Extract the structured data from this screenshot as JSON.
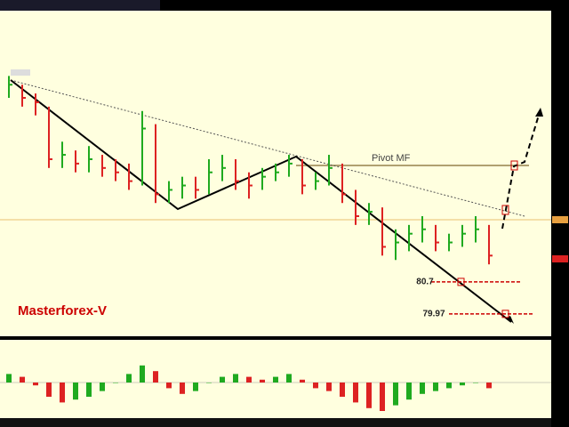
{
  "chart_data": {
    "type": "hlc",
    "title": "Masterforex-V",
    "pivot_label": "Pivot MF",
    "levels": [
      80.7,
      79.97
    ],
    "level_color": "#cc0000",
    "ylim": [
      79.52,
      86.89
    ],
    "up_color": "#1faa1f",
    "down_color": "#dd2222",
    "highs": [
      85.4,
      85.2,
      85.0,
      84.7,
      83.9,
      83.7,
      83.8,
      83.6,
      83.5,
      83.4,
      84.6,
      84.3,
      83.0,
      83.1,
      83.1,
      83.5,
      83.6,
      83.5,
      83.2,
      83.3,
      83.4,
      83.6,
      83.5,
      83.2,
      83.6,
      83.4,
      82.8,
      82.5,
      82.4,
      81.9,
      82.0,
      82.2,
      82.0,
      81.8,
      82.0,
      82.2,
      82.0
    ],
    "lows": [
      84.9,
      84.7,
      84.5,
      83.3,
      83.3,
      83.2,
      83.2,
      83.1,
      83.0,
      82.8,
      82.9,
      82.5,
      82.5,
      82.6,
      82.6,
      82.7,
      83.0,
      82.8,
      82.6,
      82.8,
      83.0,
      83.1,
      82.7,
      82.8,
      82.9,
      82.5,
      82.0,
      82.0,
      81.3,
      81.2,
      81.4,
      81.6,
      81.4,
      81.4,
      81.5,
      81.6,
      81.1
    ],
    "closes": [
      85.2,
      84.9,
      84.8,
      83.5,
      83.6,
      83.4,
      83.5,
      83.3,
      83.2,
      83.0,
      84.2,
      82.7,
      82.8,
      82.9,
      82.8,
      83.2,
      83.3,
      83.0,
      82.9,
      83.1,
      83.2,
      83.4,
      82.9,
      83.0,
      83.3,
      82.7,
      82.2,
      82.3,
      81.5,
      81.6,
      81.8,
      81.9,
      81.6,
      81.6,
      81.8,
      81.9,
      81.3
    ],
    "oscillator": {
      "ylim": [
        -1,
        1
      ],
      "values": [
        0.3,
        0.2,
        -0.1,
        -0.5,
        -0.7,
        -0.6,
        -0.5,
        -0.3,
        0.0,
        0.3,
        0.6,
        0.4,
        -0.2,
        -0.4,
        -0.3,
        0.0,
        0.2,
        0.3,
        0.2,
        0.1,
        0.2,
        0.3,
        0.1,
        -0.2,
        -0.3,
        -0.5,
        -0.7,
        -0.9,
        -1.0,
        -0.8,
        -0.6,
        -0.4,
        -0.3,
        -0.2,
        -0.1,
        0.0,
        -0.2
      ]
    }
  }
}
